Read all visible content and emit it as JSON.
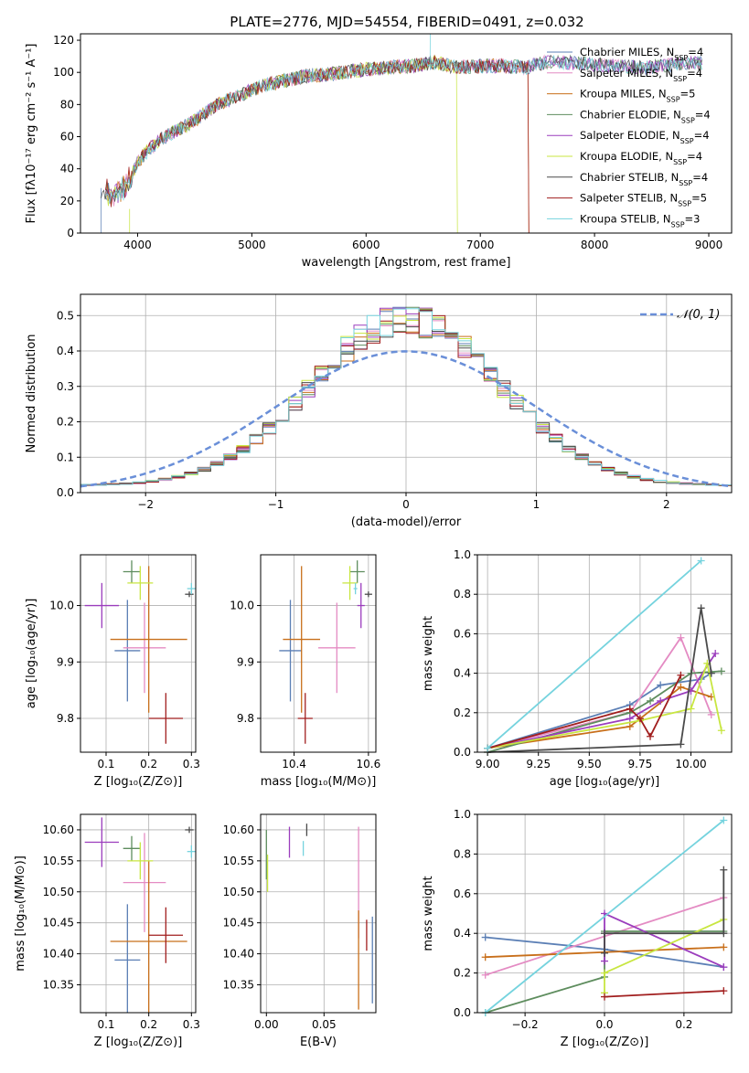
{
  "chart_data": [
    {
      "type": "line",
      "title": "PLATE=2776, MJD=54554, FIBERID=0491, z=0.032",
      "xlabel": "wavelength [Angstrom, rest frame]",
      "ylabel": "Flux [fλ10⁻¹⁷ erg cm⁻² s⁻¹ A⁻¹]",
      "xlim": [
        3500,
        9200
      ],
      "ylim": [
        0,
        124
      ],
      "xticks": [
        "4000",
        "5000",
        "6000",
        "7000",
        "8000",
        "9000"
      ],
      "yticks": [
        "0",
        "20",
        "40",
        "60",
        "80",
        "100",
        "120"
      ],
      "grid": false,
      "legend_position": "upper right",
      "legend": [
        "Chabrier MILES, N_SSP=4",
        "Salpeter MILES, N_SSP=4",
        "Kroupa MILES, N_SSP=5",
        "Chabrier ELODIE, N_SSP=4",
        "Salpeter ELODIE, N_SSP=4",
        "Kroupa ELODIE, N_SSP=4",
        "Chabrier STELIB, N_SSP=4",
        "Salpeter STELIB, N_SSP=5",
        "Kroupa STELIB, N_SSP=3"
      ],
      "colors": [
        "#5b7fb5",
        "#e48bc3",
        "#c86f1a",
        "#5e8d5e",
        "#9b3dbd",
        "#c8e641",
        "#4a4a4a",
        "#a11e1e",
        "#75d3de"
      ],
      "spectrum_envelope": {
        "x": [
          3680,
          3800,
          3900,
          4000,
          4100,
          4200,
          4300,
          4500,
          4700,
          4900,
          5100,
          5300,
          5500,
          5700,
          6000,
          6200,
          6400,
          6600,
          6800,
          7000,
          7200,
          7400,
          7600,
          7800,
          8000,
          8200,
          8400,
          8600,
          8800,
          8900
        ],
        "y": [
          28,
          24,
          30,
          44,
          52,
          58,
          62,
          70,
          80,
          86,
          92,
          95,
          98,
          99,
          102,
          103,
          104,
          106,
          103,
          104,
          104,
          103,
          107,
          106,
          105,
          104,
          103,
          104,
          106,
          106
        ]
      }
    },
    {
      "type": "step",
      "xlabel": "(data-model)/error",
      "ylabel": "Normed distribution",
      "xlim": [
        -2.5,
        2.5
      ],
      "ylim": [
        0,
        0.56
      ],
      "xticks": [
        "−2",
        "−1",
        "0",
        "1",
        "2"
      ],
      "yticks": [
        "0.0",
        "0.1",
        "0.2",
        "0.3",
        "0.4",
        "0.5"
      ],
      "grid": true,
      "legend_position": "upper right",
      "legend": [
        "𝒩(0, 1)"
      ],
      "reference_curve": "normal(0,1)"
    },
    {
      "type": "scatter",
      "xlabel": "Z [log₁₀(Z/Z⊙)]",
      "ylabel": "age  [log₁₀(age/yr)]",
      "xlim": [
        0.04,
        0.31
      ],
      "ylim": [
        9.74,
        10.09
      ],
      "xticks": [
        "0.1",
        "0.2",
        "0.3"
      ],
      "yticks": [
        "9.8",
        "9.9",
        "10.0"
      ],
      "grid": true,
      "points": [
        {
          "x": 0.15,
          "y": 9.92,
          "xerr": 0.03,
          "yerr": 0.09
        },
        {
          "x": 0.19,
          "y": 9.925,
          "xerr": 0.05,
          "yerr": 0.08
        },
        {
          "x": 0.2,
          "y": 9.94,
          "xerr": 0.09,
          "yerr": 0.13
        },
        {
          "x": 0.16,
          "y": 10.06,
          "xerr": 0.02,
          "yerr": 0.02
        },
        {
          "x": 0.09,
          "y": 10.0,
          "xerr": 0.04,
          "yerr": 0.04
        },
        {
          "x": 0.18,
          "y": 10.04,
          "xerr": 0.03,
          "yerr": 0.03
        },
        {
          "x": 0.295,
          "y": 10.02,
          "xerr": 0.01,
          "yerr": 0.005
        },
        {
          "x": 0.24,
          "y": 9.8,
          "xerr": 0.04,
          "yerr": 0.045
        },
        {
          "x": 0.3,
          "y": 10.03,
          "xerr": 0.01,
          "yerr": 0.01
        }
      ]
    },
    {
      "type": "scatter",
      "xlabel": "mass [log₁₀(M/M⊙)]",
      "xlim": [
        10.31,
        10.62
      ],
      "ylim": [
        9.74,
        10.09
      ],
      "xticks": [
        "10.4",
        "10.6"
      ],
      "yticks": [
        "9.8",
        "9.9",
        "10.0"
      ],
      "grid": true,
      "points": [
        {
          "x": 10.39,
          "y": 9.92,
          "xerr": 0.03,
          "yerr": 0.09
        },
        {
          "x": 10.515,
          "y": 9.925,
          "xerr": 0.05,
          "yerr": 0.08
        },
        {
          "x": 10.42,
          "y": 9.94,
          "xerr": 0.05,
          "yerr": 0.13
        },
        {
          "x": 10.57,
          "y": 10.06,
          "xerr": 0.02,
          "yerr": 0.02
        },
        {
          "x": 10.58,
          "y": 10.0,
          "xerr": 0.01,
          "yerr": 0.04
        },
        {
          "x": 10.55,
          "y": 10.04,
          "xerr": 0.02,
          "yerr": 0.03
        },
        {
          "x": 10.6,
          "y": 10.02,
          "xerr": 0.01,
          "yerr": 0.005
        },
        {
          "x": 10.43,
          "y": 9.8,
          "xerr": 0.02,
          "yerr": 0.045
        },
        {
          "x": 10.565,
          "y": 10.03,
          "xerr": 0.005,
          "yerr": 0.01
        }
      ]
    },
    {
      "type": "line",
      "xlabel": "age  [log₁₀(age/yr)]",
      "ylabel": "mass weight",
      "xlim": [
        8.95,
        10.2
      ],
      "ylim": [
        0,
        1.0
      ],
      "xticks": [
        "9.00",
        "9.25",
        "9.50",
        "9.75",
        "10.00"
      ],
      "yticks": [
        "0.0",
        "0.2",
        "0.4",
        "0.6",
        "0.8",
        "1.0"
      ],
      "grid": true,
      "series": [
        {
          "x": [
            9.0,
            9.7,
            9.85,
            10.05,
            10.1
          ],
          "y": [
            0.02,
            0.24,
            0.34,
            0.37,
            0.4
          ]
        },
        {
          "x": [
            9.0,
            9.7,
            9.95,
            10.1
          ],
          "y": [
            0.02,
            0.2,
            0.58,
            0.19
          ]
        },
        {
          "x": [
            9.0,
            9.7,
            9.95,
            10.1
          ],
          "y": [
            0.02,
            0.13,
            0.33,
            0.28
          ]
        },
        {
          "x": [
            9.0,
            9.7,
            9.8,
            10.0,
            10.15
          ],
          "y": [
            0.0,
            0.2,
            0.26,
            0.4,
            0.41
          ]
        },
        {
          "x": [
            9.0,
            9.7,
            9.85,
            10.0,
            10.12
          ],
          "y": [
            0.02,
            0.17,
            0.26,
            0.31,
            0.5
          ]
        },
        {
          "x": [
            9.0,
            9.75,
            10.0,
            10.08,
            10.15
          ],
          "y": [
            0.02,
            0.16,
            0.22,
            0.45,
            0.11
          ]
        },
        {
          "x": [
            9.0,
            9.95,
            10.05,
            10.1
          ],
          "y": [
            0.0,
            0.04,
            0.73,
            0.4
          ]
        },
        {
          "x": [
            9.0,
            9.7,
            9.75,
            9.8,
            9.95
          ],
          "y": [
            0.02,
            0.22,
            0.17,
            0.08,
            0.39
          ]
        },
        {
          "x": [
            9.0,
            10.05
          ],
          "y": [
            0.02,
            0.97
          ]
        }
      ]
    },
    {
      "type": "scatter",
      "xlabel": "Z [log₁₀(Z/Z⊙)]",
      "ylabel": "mass [log₁₀(M/M⊙)]",
      "xlim": [
        0.04,
        0.31
      ],
      "ylim": [
        10.305,
        10.625
      ],
      "xticks": [
        "0.1",
        "0.2",
        "0.3"
      ],
      "yticks": [
        "10.35",
        "10.40",
        "10.45",
        "10.50",
        "10.55",
        "10.60"
      ],
      "grid": true,
      "points": [
        {
          "x": 0.15,
          "y": 10.39,
          "xerr": 0.03,
          "yerr": 0.09
        },
        {
          "x": 0.19,
          "y": 10.515,
          "xerr": 0.05,
          "yerr": 0.08
        },
        {
          "x": 0.2,
          "y": 10.42,
          "xerr": 0.09,
          "yerr": 0.13
        },
        {
          "x": 0.16,
          "y": 10.57,
          "xerr": 0.02,
          "yerr": 0.02
        },
        {
          "x": 0.09,
          "y": 10.58,
          "xerr": 0.04,
          "yerr": 0.04
        },
        {
          "x": 0.18,
          "y": 10.55,
          "xerr": 0.03,
          "yerr": 0.03
        },
        {
          "x": 0.295,
          "y": 10.6,
          "xerr": 0.01,
          "yerr": 0.005
        },
        {
          "x": 0.24,
          "y": 10.43,
          "xerr": 0.04,
          "yerr": 0.045
        },
        {
          "x": 0.3,
          "y": 10.565,
          "xerr": 0.01,
          "yerr": 0.01
        }
      ]
    },
    {
      "type": "scatter",
      "xlabel": "E(B-V)",
      "xlim": [
        -0.005,
        0.095
      ],
      "ylim": [
        10.305,
        10.625
      ],
      "xticks": [
        "0.00",
        "0.05"
      ],
      "yticks": [
        "10.35",
        "10.40",
        "10.45",
        "10.50",
        "10.55",
        "10.60"
      ],
      "grid": true,
      "points": [
        {
          "x": 0.092,
          "y": 10.39,
          "xerr": 0.0,
          "yerr": 0.07
        },
        {
          "x": 0.08,
          "y": 10.515,
          "xerr": 0.0,
          "yerr": 0.09
        },
        {
          "x": 0.08,
          "y": 10.39,
          "xerr": 0.0,
          "yerr": 0.08
        },
        {
          "x": 0.0,
          "y": 10.56,
          "xerr": 0.0,
          "yerr": 0.04
        },
        {
          "x": 0.02,
          "y": 10.58,
          "xerr": 0.0,
          "yerr": 0.025
        },
        {
          "x": 0.001,
          "y": 10.53,
          "xerr": 0.0,
          "yerr": 0.03
        },
        {
          "x": 0.035,
          "y": 10.6,
          "xerr": 0.0,
          "yerr": 0.01
        },
        {
          "x": 0.087,
          "y": 10.43,
          "xerr": 0.0,
          "yerr": 0.025
        },
        {
          "x": 0.032,
          "y": 10.57,
          "xerr": 0.0,
          "yerr": 0.012
        }
      ]
    },
    {
      "type": "line",
      "xlabel": "Z [log₁₀(Z/Z⊙)]",
      "ylabel": "mass weight",
      "xlim": [
        -0.32,
        0.32
      ],
      "ylim": [
        0,
        1.0
      ],
      "xticks": [
        "−0.2",
        "0.0",
        "0.2"
      ],
      "yticks": [
        "0.0",
        "0.2",
        "0.4",
        "0.6",
        "0.8",
        "1.0"
      ],
      "grid": true,
      "series": [
        {
          "x": [
            -0.3,
            0.0,
            0.3
          ],
          "y": [
            0.38,
            0.32,
            0.23
          ]
        },
        {
          "x": [
            -0.3,
            0.3
          ],
          "y": [
            0.19,
            0.58
          ]
        },
        {
          "x": [
            -0.3,
            0.3
          ],
          "y": [
            0.28,
            0.33
          ]
        },
        {
          "x": [
            -0.3,
            0.0,
            0.0,
            0.3
          ],
          "y": [
            0.0,
            0.18,
            0.41,
            0.41
          ]
        },
        {
          "x": [
            0.0,
            0.0,
            0.3
          ],
          "y": [
            0.26,
            0.5,
            0.23
          ]
        },
        {
          "x": [
            0.0,
            0.0,
            0.3
          ],
          "y": [
            0.1,
            0.2,
            0.47
          ]
        },
        {
          "x": [
            0.0,
            0.0,
            0.3,
            0.3
          ],
          "y": [
            0.3,
            0.4,
            0.4,
            0.72
          ]
        },
        {
          "x": [
            0.0,
            0.3
          ],
          "y": [
            0.08,
            0.11
          ]
        },
        {
          "x": [
            -0.3,
            0.3
          ],
          "y": [
            0.0,
            0.97
          ]
        }
      ]
    }
  ]
}
